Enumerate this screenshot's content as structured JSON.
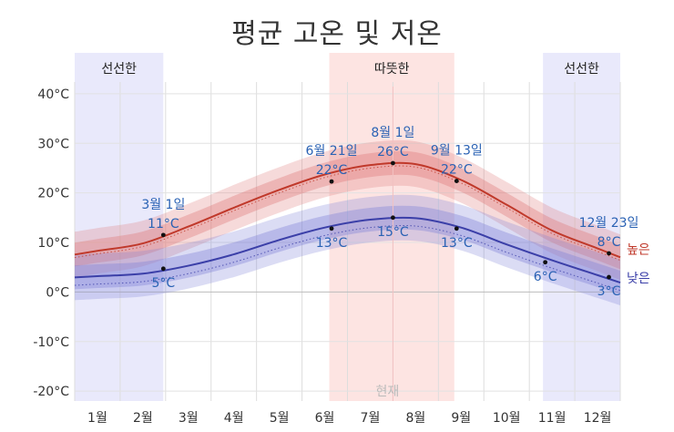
{
  "chart_data": {
    "type": "line",
    "title": "평균 고온 및 저온",
    "x_unit": "month",
    "x_labels": [
      "1월",
      "2월",
      "3월",
      "4월",
      "5월",
      "6월",
      "7월",
      "8월",
      "9월",
      "10월",
      "11월",
      "12월"
    ],
    "y_ticks": [
      "40°C",
      "30°C",
      "20°C",
      "10°C",
      "0°C",
      "-10°C",
      "-20°C"
    ],
    "ylim": [
      -22,
      42
    ],
    "grid": true,
    "series": [
      {
        "name": "높은",
        "color": "#c0392b",
        "band_color": "#e07a7a",
        "x": [
          0.5,
          1.5,
          2.5,
          3.5,
          4.5,
          5.5,
          6.5,
          7.5,
          8.5,
          9.5,
          10.5,
          11.5
        ],
        "values": [
          8.3,
          9.8,
          13.2,
          17.0,
          20.6,
          23.7,
          25.6,
          25.8,
          22.6,
          17.6,
          12.4,
          8.8
        ]
      },
      {
        "name": "낮은",
        "color": "#3b3fa8",
        "band_color": "#7d82d8",
        "x": [
          0.5,
          1.5,
          2.5,
          3.5,
          4.5,
          5.5,
          6.5,
          7.5,
          8.5,
          9.5,
          10.5,
          11.5
        ],
        "values": [
          3.2,
          3.7,
          5.3,
          7.6,
          10.5,
          13.0,
          14.6,
          14.9,
          13.0,
          9.6,
          6.4,
          3.4
        ]
      }
    ],
    "seasons": [
      {
        "label": "선선한",
        "from": 0,
        "to": 1.95,
        "kind": "cool"
      },
      {
        "label": "따뜻한",
        "from": 5.6,
        "to": 8.35,
        "kind": "warm"
      },
      {
        "label": "선선한",
        "from": 10.3,
        "to": 12,
        "kind": "cool"
      }
    ],
    "annotations": [
      {
        "date": "3월 1일",
        "value": "11°C",
        "x": 1.95,
        "y": 11.5,
        "pos": "above"
      },
      {
        "date": "",
        "value": "5°C",
        "x": 1.95,
        "y": 4.7,
        "pos": "below"
      },
      {
        "date": "6월 21일",
        "value": "22°C",
        "x": 5.65,
        "y": 22.3,
        "pos": "above"
      },
      {
        "date": "",
        "value": "13°C",
        "x": 5.65,
        "y": 12.8,
        "pos": "below"
      },
      {
        "date": "8월 1일",
        "value": "26°C",
        "x": 7.0,
        "y": 26.0,
        "pos": "above"
      },
      {
        "date": "",
        "value": "15°C",
        "x": 7.0,
        "y": 15.0,
        "pos": "below"
      },
      {
        "date": "9월 13일",
        "value": "22°C",
        "x": 8.4,
        "y": 22.4,
        "pos": "above"
      },
      {
        "date": "",
        "value": "13°C",
        "x": 8.4,
        "y": 12.8,
        "pos": "below"
      },
      {
        "date": "",
        "value": "6°C",
        "x": 10.35,
        "y": 6.0,
        "pos": "below"
      },
      {
        "date": "12월 23일",
        "value": "8°C",
        "x": 11.75,
        "y": 7.8,
        "pos": "above"
      },
      {
        "date": "",
        "value": "3°C",
        "x": 11.75,
        "y": 3.0,
        "pos": "below"
      }
    ],
    "current_label": "현재",
    "current_x": 7.0
  }
}
